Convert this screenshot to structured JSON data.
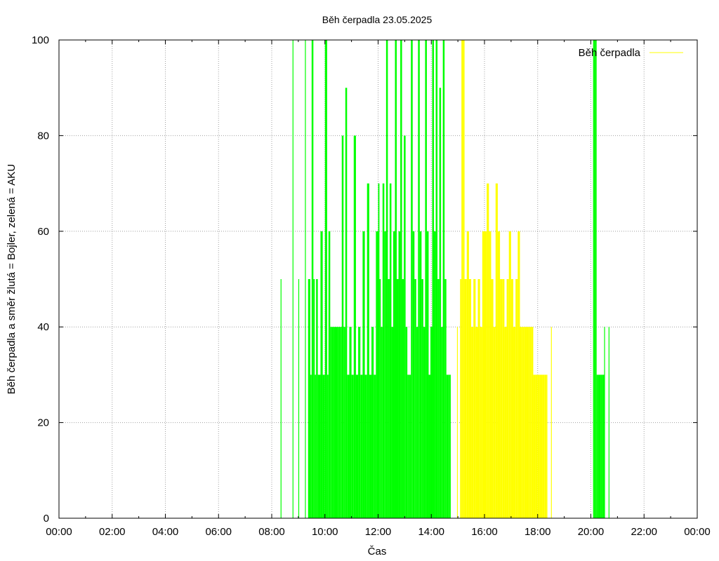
{
  "chart_data": {
    "type": "bar",
    "title": "Běh čerpadla 23.05.2025",
    "xlabel": "Čas",
    "ylabel": "Běh čerpadla a směr žlutá = Bojler, zelená = AKU",
    "xlim": [
      "00:00",
      "24:00"
    ],
    "ylim": [
      0,
      100
    ],
    "x_ticks": [
      "00:00",
      "02:00",
      "04:00",
      "06:00",
      "08:00",
      "10:00",
      "12:00",
      "14:00",
      "16:00",
      "18:00",
      "20:00",
      "22:00",
      "00:00"
    ],
    "y_ticks": [
      0,
      20,
      40,
      60,
      80,
      100
    ],
    "grid": true,
    "legend": {
      "entries": [
        "Běh čerpadla"
      ],
      "placement": "top-right"
    },
    "colors": {
      "aku": "#00ff00",
      "bojler": "#ffff00",
      "grid": "#a0a0a0",
      "axis": "#000000"
    },
    "series": [
      {
        "direction": "AKU",
        "color": "#00ff00",
        "x": [
          "08:20",
          "08:47",
          "09:00",
          "09:15",
          "09:22",
          "09:27",
          "09:30",
          "09:34",
          "09:37",
          "09:40",
          "09:44",
          "09:50",
          "09:55",
          "10:00",
          "10:05",
          "10:08",
          "10:12",
          "10:16",
          "10:20",
          "10:25",
          "10:30",
          "10:34",
          "10:38",
          "10:42",
          "10:46",
          "10:50",
          "10:55",
          "11:00",
          "11:05",
          "11:10",
          "11:15",
          "11:20",
          "11:25",
          "11:30",
          "11:35",
          "11:40",
          "11:45",
          "11:50",
          "11:55",
          "12:00",
          "12:03",
          "12:06",
          "12:10",
          "12:14",
          "12:18",
          "12:22",
          "12:26",
          "12:30",
          "12:34",
          "12:38",
          "12:42",
          "12:46",
          "12:50",
          "12:54",
          "12:58",
          "13:02",
          "13:06",
          "13:10",
          "13:14",
          "13:18",
          "13:22",
          "13:26",
          "13:30",
          "13:34",
          "13:38",
          "13:42",
          "13:46",
          "13:50",
          "13:54",
          "13:58",
          "14:02",
          "14:06",
          "14:10",
          "14:14",
          "14:18",
          "14:22",
          "14:26",
          "14:30",
          "14:34",
          "14:38",
          "14:42",
          "20:05",
          "20:07",
          "20:10",
          "20:13",
          "20:16",
          "20:19",
          "20:22",
          "20:25",
          "20:30",
          "20:40"
        ],
        "y": [
          50,
          100,
          50,
          100,
          50,
          30,
          100,
          50,
          30,
          50,
          30,
          60,
          30,
          100,
          30,
          60,
          40,
          40,
          40,
          40,
          40,
          40,
          80,
          40,
          90,
          30,
          40,
          30,
          80,
          30,
          40,
          30,
          60,
          30,
          70,
          30,
          40,
          30,
          60,
          70,
          50,
          40,
          70,
          60,
          100,
          50,
          70,
          40,
          60,
          100,
          50,
          60,
          100,
          50,
          80,
          40,
          30,
          30,
          100,
          60,
          50,
          40,
          100,
          60,
          50,
          40,
          100,
          60,
          30,
          40,
          100,
          60,
          100,
          50,
          90,
          40,
          100,
          50,
          30,
          30,
          30,
          100,
          100,
          100,
          30,
          30,
          30,
          30,
          30,
          40,
          40
        ]
      },
      {
        "direction": "Bojler",
        "color": "#ffff00",
        "x": [
          "14:58",
          "15:05",
          "15:08",
          "15:12",
          "15:15",
          "15:20",
          "15:25",
          "15:30",
          "15:35",
          "15:40",
          "15:45",
          "15:50",
          "15:55",
          "16:00",
          "16:05",
          "16:10",
          "16:15",
          "16:20",
          "16:25",
          "16:30",
          "16:35",
          "16:40",
          "16:45",
          "16:50",
          "16:55",
          "17:00",
          "17:05",
          "17:10",
          "17:15",
          "17:20",
          "17:25",
          "17:30",
          "17:35",
          "17:40",
          "17:45",
          "17:50",
          "17:55",
          "18:00",
          "18:05",
          "18:10",
          "18:15",
          "18:20",
          "18:30"
        ],
        "y": [
          40,
          50,
          100,
          100,
          50,
          60,
          50,
          40,
          50,
          40,
          50,
          40,
          60,
          60,
          70,
          60,
          50,
          40,
          70,
          60,
          50,
          50,
          40,
          50,
          60,
          50,
          40,
          50,
          60,
          40,
          40,
          40,
          40,
          40,
          40,
          30,
          30,
          30,
          30,
          30,
          30,
          30,
          40
        ]
      }
    ]
  }
}
